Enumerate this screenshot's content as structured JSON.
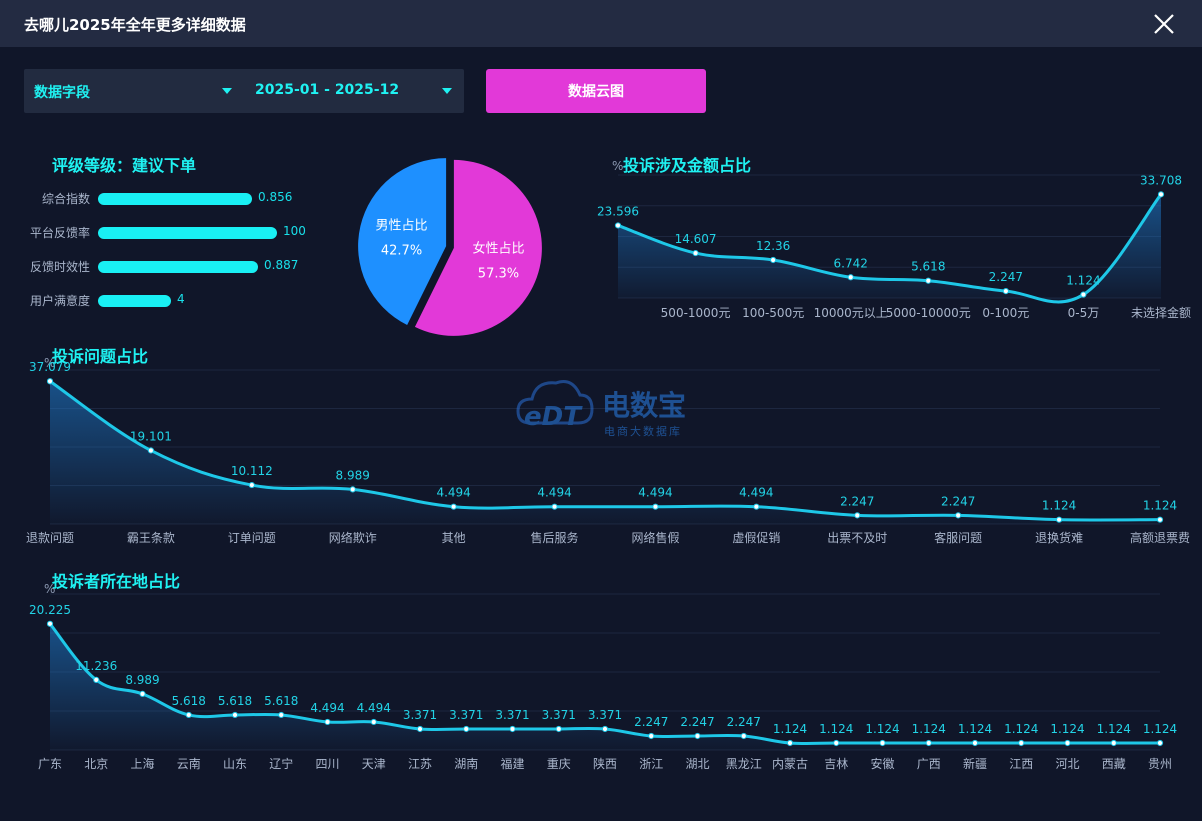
{
  "window": {
    "title": "去哪儿2025年全年更多详细数据"
  },
  "filters": {
    "field_label": "数据字段",
    "date_range": "2025-01 - 2025-12",
    "cloud_button": "数据云图"
  },
  "rating": {
    "title": "评级等级：建议下单",
    "items": [
      {
        "label": "综合指数",
        "value": "0.856",
        "fill": 0.55
      },
      {
        "label": "平台反馈率",
        "value": "100",
        "fill": 0.64
      },
      {
        "label": "反馈时效性",
        "value": "0.887",
        "fill": 0.57
      },
      {
        "label": "用户满意度",
        "value": "4",
        "fill": 0.26
      }
    ]
  },
  "gender": {
    "slices": [
      {
        "name": "男性占比",
        "value": 42.7,
        "label": "42.7%",
        "color": "#1e90ff"
      },
      {
        "name": "女性占比",
        "value": 57.3,
        "label": "57.3%",
        "color": "#e239d8"
      }
    ]
  },
  "watermark": {
    "brand": "电数宝",
    "sub": "电商大数据库",
    "logo": "eDT"
  },
  "chart_data": [
    {
      "type": "area",
      "title": "投诉涉及金额占比",
      "ylabel": "%",
      "categories": [
        "",
        "500-1000元",
        "100-500元",
        "10000元以上",
        "5000-10000元",
        "0-100元",
        "0-5万",
        "未选择金额"
      ],
      "values": [
        23.596,
        14.607,
        12.36,
        6.742,
        5.618,
        2.247,
        1.124,
        33.708
      ],
      "ylim": [
        0,
        40
      ],
      "grid": true,
      "color": "#1ec8e8"
    },
    {
      "type": "area",
      "title": "投诉问题占比",
      "ylabel": "%",
      "categories": [
        "退款问题",
        "霸王条款",
        "订单问题",
        "网络欺诈",
        "其他",
        "售后服务",
        "网络售假",
        "虚假促销",
        "出票不及时",
        "客服问题",
        "退换货难",
        "高额退票费"
      ],
      "values": [
        37.079,
        19.101,
        10.112,
        8.989,
        4.494,
        4.494,
        4.494,
        4.494,
        2.247,
        2.247,
        1.124,
        1.124
      ],
      "ylim": [
        0,
        40
      ],
      "grid": true,
      "color": "#1ec8e8"
    },
    {
      "type": "area",
      "title": "投诉者所在地占比",
      "ylabel": "%",
      "categories": [
        "广东",
        "北京",
        "上海",
        "云南",
        "山东",
        "辽宁",
        "四川",
        "天津",
        "江苏",
        "湖南",
        "福建",
        "重庆",
        "陕西",
        "浙江",
        "湖北",
        "黑龙江",
        "内蒙古",
        "吉林",
        "安徽",
        "广西",
        "新疆",
        "江西",
        "河北",
        "西藏",
        "贵州"
      ],
      "values": [
        20.225,
        11.236,
        8.989,
        5.618,
        5.618,
        5.618,
        4.494,
        4.494,
        3.371,
        3.371,
        3.371,
        3.371,
        3.371,
        2.247,
        2.247,
        2.247,
        1.124,
        1.124,
        1.124,
        1.124,
        1.124,
        1.124,
        1.124,
        1.124,
        1.124
      ],
      "ylim": [
        0,
        25
      ],
      "grid": true,
      "color": "#1ec8e8"
    }
  ]
}
